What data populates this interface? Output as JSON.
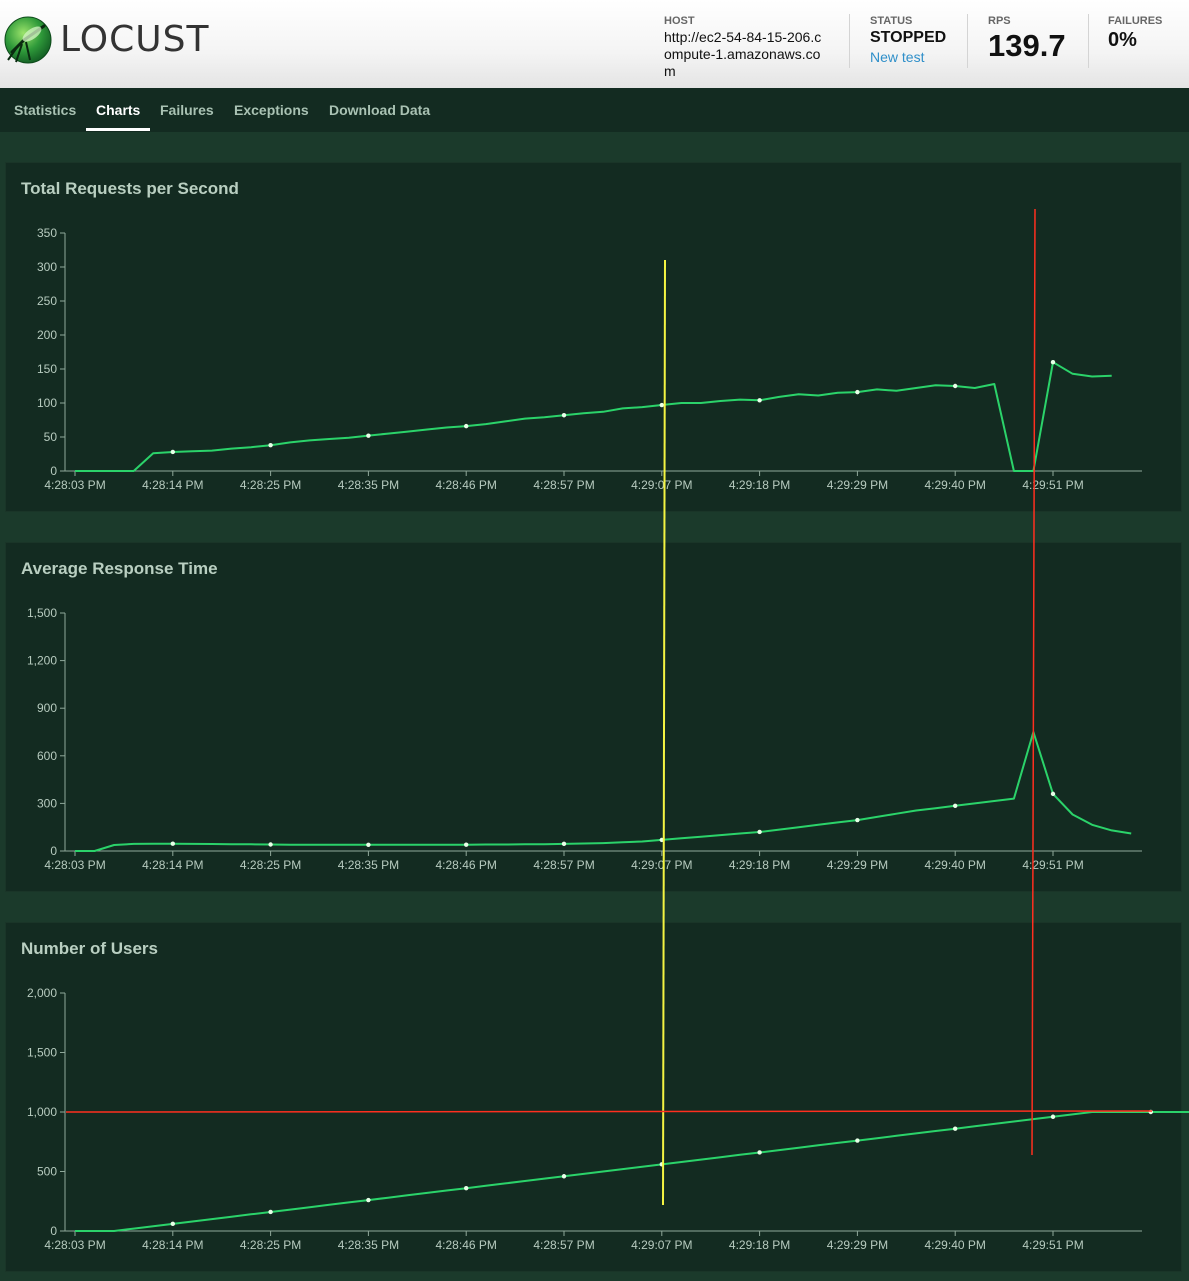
{
  "app": {
    "logo_text": "LOCUST"
  },
  "header": {
    "host_label": "HOST",
    "host_value": "http://ec2-54-84-15-206.compute-1.amazonaws.com",
    "status_label": "STATUS",
    "status_value": "STOPPED",
    "new_test_label": "New test",
    "rps_label": "RPS",
    "rps_value": "139.7",
    "failures_label": "FAILURES",
    "failures_value": "0%"
  },
  "tabs": [
    {
      "label": "Statistics",
      "active": false
    },
    {
      "label": "Charts",
      "active": true
    },
    {
      "label": "Failures",
      "active": false
    },
    {
      "label": "Exceptions",
      "active": false
    },
    {
      "label": "Download Data",
      "active": false
    }
  ],
  "colors": {
    "line": "#2bd36a",
    "point": "#e8ffe8",
    "axis": "#8fa89a",
    "yellow_marker": "#f4f442",
    "red_marker": "#ff2f1f"
  },
  "chart_data": [
    {
      "type": "line",
      "title": "Total Requests per Second",
      "xlabel": "",
      "ylabel": "",
      "x_ticks": [
        "4:28:03 PM",
        "4:28:14 PM",
        "4:28:25 PM",
        "4:28:35 PM",
        "4:28:46 PM",
        "4:28:57 PM",
        "4:29:07 PM",
        "4:29:18 PM",
        "4:29:29 PM",
        "4:29:40 PM",
        "4:29:51 PM"
      ],
      "y_ticks": [
        "0",
        "50",
        "100",
        "150",
        "200",
        "250",
        "300",
        "350"
      ],
      "ylim": [
        0,
        350
      ],
      "values": [
        0,
        0,
        0,
        0,
        26,
        28,
        29,
        30,
        33,
        35,
        38,
        42,
        45,
        47,
        49,
        52,
        55,
        58,
        61,
        64,
        66,
        69,
        73,
        77,
        79,
        82,
        85,
        87,
        92,
        94,
        97,
        100,
        100,
        103,
        105,
        104,
        109,
        113,
        111,
        115,
        116,
        120,
        118,
        122,
        126,
        125,
        122,
        128,
        0,
        0,
        160,
        143,
        139,
        140
      ],
      "point_every": 5
    },
    {
      "type": "line",
      "title": "Average Response Time",
      "xlabel": "",
      "ylabel": "",
      "x_ticks": [
        "4:28:03 PM",
        "4:28:14 PM",
        "4:28:25 PM",
        "4:28:35 PM",
        "4:28:46 PM",
        "4:28:57 PM",
        "4:29:07 PM",
        "4:29:18 PM",
        "4:29:29 PM",
        "4:29:40 PM",
        "4:29:51 PM"
      ],
      "y_ticks": [
        "0",
        "300",
        "600",
        "900",
        "1,200",
        "1,500"
      ],
      "ylim": [
        0,
        1500
      ],
      "values": [
        0,
        0,
        38,
        45,
        46,
        46,
        45,
        44,
        43,
        42,
        41,
        40,
        40,
        39,
        39,
        39,
        40,
        40,
        40,
        40,
        40,
        41,
        41,
        42,
        43,
        45,
        47,
        50,
        55,
        60,
        70,
        80,
        90,
        100,
        110,
        120,
        135,
        150,
        165,
        180,
        195,
        215,
        235,
        255,
        270,
        285,
        300,
        315,
        330,
        750,
        360,
        230,
        165,
        130,
        110
      ],
      "point_every": 5
    },
    {
      "type": "line",
      "title": "Number of Users",
      "xlabel": "",
      "ylabel": "",
      "x_ticks": [
        "4:28:03 PM",
        "4:28:14 PM",
        "4:28:25 PM",
        "4:28:35 PM",
        "4:28:46 PM",
        "4:28:57 PM",
        "4:29:07 PM",
        "4:29:18 PM",
        "4:29:29 PM",
        "4:29:40 PM",
        "4:29:51 PM"
      ],
      "y_ticks": [
        "0",
        "500",
        "1,000",
        "1,500",
        "2,000"
      ],
      "ylim": [
        0,
        2000
      ],
      "values": [
        0,
        0,
        0,
        20,
        40,
        60,
        80,
        100,
        120,
        140,
        160,
        180,
        200,
        220,
        240,
        260,
        280,
        300,
        320,
        340,
        360,
        380,
        400,
        420,
        440,
        460,
        480,
        500,
        520,
        540,
        560,
        580,
        600,
        620,
        640,
        660,
        680,
        700,
        720,
        740,
        760,
        780,
        800,
        820,
        840,
        860,
        880,
        900,
        920,
        940,
        960,
        980,
        1000,
        1000,
        1000,
        1000,
        1000,
        1000
      ],
      "point_every": 5
    }
  ]
}
